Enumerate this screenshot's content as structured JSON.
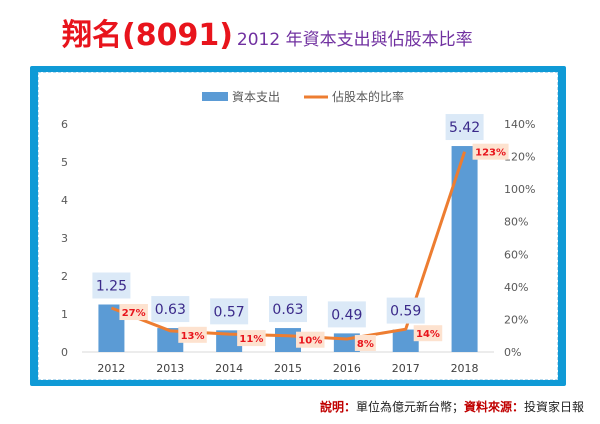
{
  "header": {
    "title_main": "翔名(8091)",
    "title_sub": "2012 年資本支出與佔股本比率"
  },
  "footer": {
    "note_label": "說明：",
    "note_text": "單位為億元新台幣；",
    "source_label": "資料來源：",
    "source_text": "投資家日報"
  },
  "colors": {
    "bar": "#5b9bd5",
    "line": "#ed7d31",
    "bar_label_bg": "#dbe9f7",
    "bar_label_text": "#3b2a8a",
    "pct_label_bg": "#fde2cf",
    "pct_label_text": "#e8141c",
    "frame": "#0f9ad6"
  },
  "chart_data": {
    "type": "bar",
    "categories": [
      "2012",
      "2013",
      "2014",
      "2015",
      "2016",
      "2017",
      "2018"
    ],
    "series": [
      {
        "name": "資本支出",
        "type": "bar",
        "axis": "left",
        "values": [
          1.25,
          0.63,
          0.57,
          0.63,
          0.49,
          0.59,
          5.42
        ],
        "labels": [
          "1.25",
          "0.63",
          "0.57",
          "0.63",
          "0.49",
          "0.59",
          "5.42"
        ]
      },
      {
        "name": "佔股本的比率",
        "type": "line",
        "axis": "right",
        "values": [
          27,
          13,
          11,
          10,
          8,
          14,
          123
        ],
        "labels": [
          "27%",
          "13%",
          "11%",
          "10%",
          "8%",
          "14%",
          "123%"
        ]
      }
    ],
    "y_left": {
      "min": 0,
      "max": 6,
      "ticks": [
        "0",
        "1",
        "2",
        "3",
        "4",
        "5",
        "6"
      ]
    },
    "y_right": {
      "min": 0,
      "max": 140,
      "ticks": [
        "0%",
        "20%",
        "40%",
        "60%",
        "80%",
        "100%",
        "120%",
        "140%"
      ]
    },
    "legend_position": "top",
    "grid": false
  }
}
